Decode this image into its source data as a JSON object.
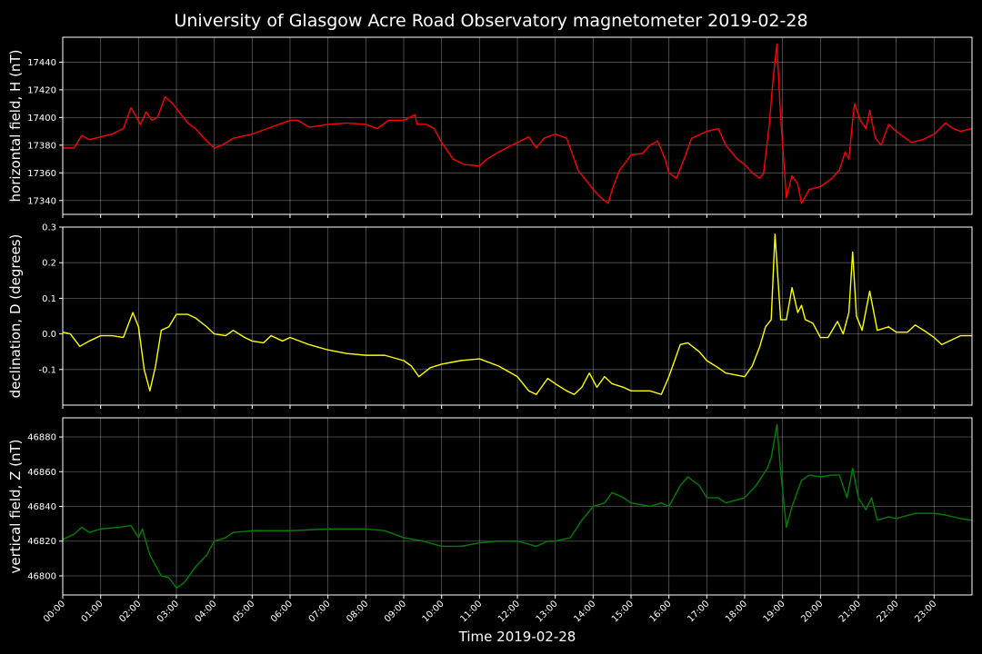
{
  "title": "University of Glasgow Acre Road Observatory magnetometer 2019-02-28",
  "chart_data": {
    "type": "line",
    "xlabel": "Time 2019-02-28",
    "x_tick_labels": [
      "00:00",
      "01:00",
      "02:00",
      "03:00",
      "04:00",
      "05:00",
      "06:00",
      "07:00",
      "08:00",
      "09:00",
      "10:00",
      "11:00",
      "12:00",
      "13:00",
      "14:00",
      "15:00",
      "16:00",
      "17:00",
      "18:00",
      "19:00",
      "20:00",
      "21:00",
      "22:00",
      "23:00"
    ],
    "xlim_hours": [
      0,
      24
    ],
    "panels": [
      {
        "ylabel": "horizontal field, H (nT)",
        "color": "#ff0000",
        "ylim": [
          17330,
          17458
        ],
        "yticks": [
          17340,
          17360,
          17380,
          17400,
          17420,
          17440
        ],
        "points": [
          [
            0,
            17378
          ],
          [
            0.3,
            17378
          ],
          [
            0.5,
            17387
          ],
          [
            0.7,
            17384
          ],
          [
            1.0,
            17386
          ],
          [
            1.3,
            17388
          ],
          [
            1.6,
            17392
          ],
          [
            1.8,
            17407
          ],
          [
            1.95,
            17400
          ],
          [
            2.05,
            17395
          ],
          [
            2.2,
            17404
          ],
          [
            2.35,
            17398
          ],
          [
            2.5,
            17400
          ],
          [
            2.7,
            17415
          ],
          [
            2.9,
            17410
          ],
          [
            3.1,
            17403
          ],
          [
            3.3,
            17396
          ],
          [
            3.5,
            17392
          ],
          [
            3.8,
            17383
          ],
          [
            4.0,
            17378
          ],
          [
            4.2,
            17380
          ],
          [
            4.5,
            17385
          ],
          [
            5.0,
            17388
          ],
          [
            5.5,
            17393
          ],
          [
            6.0,
            17398
          ],
          [
            6.2,
            17398
          ],
          [
            6.5,
            17393
          ],
          [
            7.0,
            17395
          ],
          [
            7.5,
            17396
          ],
          [
            8.0,
            17395
          ],
          [
            8.3,
            17392
          ],
          [
            8.6,
            17398
          ],
          [
            9.0,
            17398
          ],
          [
            9.3,
            17402
          ],
          [
            9.35,
            17395
          ],
          [
            9.6,
            17395
          ],
          [
            9.8,
            17392
          ],
          [
            10.0,
            17382
          ],
          [
            10.3,
            17370
          ],
          [
            10.6,
            17366
          ],
          [
            11.0,
            17365
          ],
          [
            11.2,
            17370
          ],
          [
            11.5,
            17375
          ],
          [
            12.0,
            17382
          ],
          [
            12.3,
            17386
          ],
          [
            12.5,
            17378
          ],
          [
            12.7,
            17385
          ],
          [
            13.0,
            17388
          ],
          [
            13.3,
            17385
          ],
          [
            13.5,
            17370
          ],
          [
            13.6,
            17362
          ],
          [
            13.8,
            17355
          ],
          [
            14.0,
            17348
          ],
          [
            14.2,
            17342
          ],
          [
            14.4,
            17338
          ],
          [
            14.5,
            17348
          ],
          [
            14.7,
            17362
          ],
          [
            15.0,
            17373
          ],
          [
            15.3,
            17374
          ],
          [
            15.5,
            17380
          ],
          [
            15.7,
            17383
          ],
          [
            15.9,
            17370
          ],
          [
            16.0,
            17360
          ],
          [
            16.2,
            17356
          ],
          [
            16.4,
            17370
          ],
          [
            16.6,
            17385
          ],
          [
            17.0,
            17390
          ],
          [
            17.3,
            17392
          ],
          [
            17.5,
            17380
          ],
          [
            17.8,
            17370
          ],
          [
            18.0,
            17366
          ],
          [
            18.2,
            17360
          ],
          [
            18.4,
            17356
          ],
          [
            18.5,
            17360
          ],
          [
            18.65,
            17395
          ],
          [
            18.75,
            17428
          ],
          [
            18.85,
            17453
          ],
          [
            18.95,
            17400
          ],
          [
            19.1,
            17342
          ],
          [
            19.25,
            17358
          ],
          [
            19.4,
            17352
          ],
          [
            19.5,
            17338
          ],
          [
            19.7,
            17348
          ],
          [
            20.0,
            17350
          ],
          [
            20.3,
            17356
          ],
          [
            20.5,
            17362
          ],
          [
            20.65,
            17375
          ],
          [
            20.75,
            17370
          ],
          [
            20.85,
            17398
          ],
          [
            20.9,
            17410
          ],
          [
            21.05,
            17398
          ],
          [
            21.2,
            17392
          ],
          [
            21.3,
            17405
          ],
          [
            21.45,
            17385
          ],
          [
            21.6,
            17380
          ],
          [
            21.8,
            17395
          ],
          [
            22.0,
            17390
          ],
          [
            22.4,
            17382
          ],
          [
            22.7,
            17384
          ],
          [
            23.0,
            17388
          ],
          [
            23.3,
            17396
          ],
          [
            23.5,
            17392
          ],
          [
            23.7,
            17390
          ],
          [
            24.0,
            17392
          ]
        ]
      },
      {
        "ylabel": "declination, D (degrees)",
        "color": "#ffff00",
        "ylim": [
          -0.2,
          0.3
        ],
        "yticks": [
          -0.1,
          0.0,
          0.1,
          0.2,
          0.3
        ],
        "points": [
          [
            0,
            0.005
          ],
          [
            0.2,
            0.0
          ],
          [
            0.45,
            -0.035
          ],
          [
            0.7,
            -0.02
          ],
          [
            1.0,
            -0.005
          ],
          [
            1.3,
            -0.005
          ],
          [
            1.6,
            -0.01
          ],
          [
            1.85,
            0.06
          ],
          [
            2.0,
            0.02
          ],
          [
            2.15,
            -0.1
          ],
          [
            2.3,
            -0.16
          ],
          [
            2.45,
            -0.09
          ],
          [
            2.6,
            0.01
          ],
          [
            2.8,
            0.02
          ],
          [
            3.0,
            0.055
          ],
          [
            3.3,
            0.055
          ],
          [
            3.5,
            0.045
          ],
          [
            3.8,
            0.02
          ],
          [
            4.0,
            0.0
          ],
          [
            4.3,
            -0.005
          ],
          [
            4.5,
            0.01
          ],
          [
            4.8,
            -0.01
          ],
          [
            5.0,
            -0.02
          ],
          [
            5.3,
            -0.025
          ],
          [
            5.5,
            -0.005
          ],
          [
            5.8,
            -0.02
          ],
          [
            6.0,
            -0.01
          ],
          [
            6.5,
            -0.03
          ],
          [
            7.0,
            -0.045
          ],
          [
            7.5,
            -0.055
          ],
          [
            8.0,
            -0.06
          ],
          [
            8.5,
            -0.06
          ],
          [
            9.0,
            -0.075
          ],
          [
            9.2,
            -0.09
          ],
          [
            9.4,
            -0.12
          ],
          [
            9.7,
            -0.095
          ],
          [
            10.0,
            -0.085
          ],
          [
            10.5,
            -0.075
          ],
          [
            11.0,
            -0.07
          ],
          [
            11.5,
            -0.09
          ],
          [
            12.0,
            -0.12
          ],
          [
            12.3,
            -0.16
          ],
          [
            12.5,
            -0.17
          ],
          [
            12.8,
            -0.125
          ],
          [
            13.0,
            -0.14
          ],
          [
            13.3,
            -0.16
          ],
          [
            13.5,
            -0.17
          ],
          [
            13.7,
            -0.15
          ],
          [
            13.9,
            -0.11
          ],
          [
            14.1,
            -0.15
          ],
          [
            14.3,
            -0.12
          ],
          [
            14.5,
            -0.14
          ],
          [
            14.8,
            -0.15
          ],
          [
            15.0,
            -0.16
          ],
          [
            15.5,
            -0.16
          ],
          [
            15.8,
            -0.17
          ],
          [
            16.0,
            -0.12
          ],
          [
            16.3,
            -0.03
          ],
          [
            16.5,
            -0.025
          ],
          [
            16.8,
            -0.05
          ],
          [
            17.0,
            -0.075
          ],
          [
            17.3,
            -0.095
          ],
          [
            17.5,
            -0.11
          ],
          [
            18.0,
            -0.12
          ],
          [
            18.2,
            -0.09
          ],
          [
            18.4,
            -0.035
          ],
          [
            18.55,
            0.02
          ],
          [
            18.7,
            0.04
          ],
          [
            18.8,
            0.28
          ],
          [
            18.95,
            0.04
          ],
          [
            19.1,
            0.04
          ],
          [
            19.25,
            0.13
          ],
          [
            19.4,
            0.06
          ],
          [
            19.5,
            0.08
          ],
          [
            19.6,
            0.04
          ],
          [
            19.8,
            0.03
          ],
          [
            20.0,
            -0.01
          ],
          [
            20.2,
            -0.01
          ],
          [
            20.45,
            0.035
          ],
          [
            20.6,
            0.0
          ],
          [
            20.75,
            0.06
          ],
          [
            20.85,
            0.23
          ],
          [
            20.95,
            0.05
          ],
          [
            21.1,
            0.01
          ],
          [
            21.3,
            0.12
          ],
          [
            21.5,
            0.01
          ],
          [
            21.8,
            0.02
          ],
          [
            22.0,
            0.005
          ],
          [
            22.3,
            0.005
          ],
          [
            22.5,
            0.025
          ],
          [
            22.8,
            0.005
          ],
          [
            23.0,
            -0.01
          ],
          [
            23.2,
            -0.03
          ],
          [
            23.5,
            -0.015
          ],
          [
            23.7,
            -0.005
          ],
          [
            24.0,
            -0.005
          ]
        ]
      },
      {
        "ylabel": "vertical field, Z (nT)",
        "color": "#008000",
        "ylim": [
          46789,
          46891
        ],
        "yticks": [
          46800,
          46820,
          46840,
          46860,
          46880
        ],
        "points": [
          [
            0,
            46821
          ],
          [
            0.3,
            46824
          ],
          [
            0.5,
            46828
          ],
          [
            0.7,
            46825
          ],
          [
            1.0,
            46827
          ],
          [
            1.5,
            46828
          ],
          [
            1.8,
            46829
          ],
          [
            2.0,
            46822
          ],
          [
            2.1,
            46827
          ],
          [
            2.3,
            46812
          ],
          [
            2.6,
            46800
          ],
          [
            2.8,
            46799
          ],
          [
            3.0,
            46793
          ],
          [
            3.2,
            46796
          ],
          [
            3.5,
            46805
          ],
          [
            3.8,
            46812
          ],
          [
            4.0,
            46820
          ],
          [
            4.3,
            46822
          ],
          [
            4.5,
            46825
          ],
          [
            5.0,
            46826
          ],
          [
            6.0,
            46826
          ],
          [
            7.0,
            46827
          ],
          [
            8.0,
            46827
          ],
          [
            8.5,
            46826
          ],
          [
            9.0,
            46822
          ],
          [
            9.5,
            46820
          ],
          [
            10.0,
            46817
          ],
          [
            10.5,
            46817
          ],
          [
            11.0,
            46819
          ],
          [
            11.5,
            46820
          ],
          [
            12.0,
            46820
          ],
          [
            12.5,
            46817
          ],
          [
            12.8,
            46820
          ],
          [
            13.0,
            46820
          ],
          [
            13.4,
            46822
          ],
          [
            13.7,
            46832
          ],
          [
            14.0,
            46840
          ],
          [
            14.3,
            46842
          ],
          [
            14.5,
            46848
          ],
          [
            14.8,
            46845
          ],
          [
            15.0,
            46842
          ],
          [
            15.5,
            46840
          ],
          [
            15.8,
            46842
          ],
          [
            16.0,
            46840
          ],
          [
            16.3,
            46852
          ],
          [
            16.5,
            46857
          ],
          [
            16.8,
            46852
          ],
          [
            17.0,
            46845
          ],
          [
            17.3,
            46845
          ],
          [
            17.5,
            46842
          ],
          [
            18.0,
            46845
          ],
          [
            18.3,
            46852
          ],
          [
            18.6,
            46862
          ],
          [
            18.7,
            46868
          ],
          [
            18.85,
            46887
          ],
          [
            18.95,
            46860
          ],
          [
            19.1,
            46828
          ],
          [
            19.25,
            46840
          ],
          [
            19.5,
            46855
          ],
          [
            19.7,
            46858
          ],
          [
            20.0,
            46857
          ],
          [
            20.3,
            46858
          ],
          [
            20.5,
            46858
          ],
          [
            20.7,
            46845
          ],
          [
            20.85,
            46862
          ],
          [
            21.0,
            46845
          ],
          [
            21.2,
            46838
          ],
          [
            21.35,
            46845
          ],
          [
            21.5,
            46832
          ],
          [
            21.8,
            46834
          ],
          [
            22.0,
            46833
          ],
          [
            22.5,
            46836
          ],
          [
            23.0,
            46836
          ],
          [
            23.3,
            46835
          ],
          [
            23.7,
            46833
          ],
          [
            24.0,
            46832
          ]
        ]
      }
    ]
  }
}
